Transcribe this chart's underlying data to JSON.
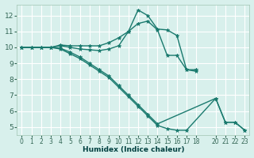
{
  "xlabel": "Humidex (Indice chaleur)",
  "bg_color": "#d8f0ec",
  "grid_color": "#ffffff",
  "line_color": "#1a7a6e",
  "xlim": [
    -0.5,
    23.5
  ],
  "ylim": [
    4.5,
    12.7
  ],
  "yticks": [
    5,
    6,
    7,
    8,
    9,
    10,
    11,
    12
  ],
  "xticks": [
    0,
    1,
    2,
    3,
    4,
    5,
    6,
    7,
    8,
    9,
    10,
    11,
    12,
    13,
    14,
    15,
    16,
    17,
    18,
    20,
    21,
    22,
    23
  ],
  "xtick_labels": [
    "0",
    "1",
    "2",
    "3",
    "4",
    "5",
    "6",
    "7",
    "8",
    "9",
    "10",
    "11",
    "12",
    "13",
    "14",
    "15",
    "16",
    "17",
    "18",
    "20",
    "21",
    "22",
    "23"
  ],
  "curves": [
    {
      "x": [
        0,
        1,
        2,
        3,
        4,
        5,
        6,
        7,
        8,
        9,
        10,
        11,
        12,
        13,
        14,
        15,
        16,
        17,
        18
      ],
      "y": [
        10,
        10,
        10,
        10,
        10.15,
        10.1,
        10.1,
        10.1,
        10.1,
        10.3,
        10.6,
        11.0,
        12.35,
        12.0,
        11.15,
        11.1,
        10.75,
        8.6,
        8.6
      ]
    },
    {
      "x": [
        0,
        1,
        2,
        3,
        4,
        5,
        6,
        7,
        8,
        9,
        10,
        11,
        12,
        13,
        14,
        15,
        16,
        17,
        18
      ],
      "y": [
        10,
        10,
        10,
        10,
        10.1,
        10.0,
        9.9,
        9.85,
        9.8,
        9.9,
        10.1,
        11.0,
        11.5,
        11.65,
        11.1,
        9.5,
        9.5,
        8.6,
        8.5
      ]
    },
    {
      "x": [
        0,
        1,
        2,
        3,
        4,
        5,
        6,
        7,
        8,
        9,
        10,
        11,
        12,
        13,
        14,
        15,
        16,
        17,
        20,
        21,
        22,
        23
      ],
      "y": [
        10,
        10,
        10,
        10,
        9.9,
        9.6,
        9.3,
        8.9,
        8.5,
        8.1,
        7.5,
        6.9,
        6.3,
        5.7,
        5.1,
        4.9,
        4.8,
        4.8,
        6.8,
        5.3,
        5.3,
        4.8
      ]
    },
    {
      "x": [
        0,
        1,
        2,
        3,
        4,
        5,
        6,
        7,
        8,
        9,
        10,
        11,
        12,
        13,
        14,
        20,
        21,
        22,
        23
      ],
      "y": [
        10,
        10,
        10,
        10,
        9.95,
        9.7,
        9.4,
        9.0,
        8.6,
        8.2,
        7.6,
        7.0,
        6.4,
        5.8,
        5.2,
        6.8,
        5.3,
        5.3,
        4.8
      ]
    }
  ]
}
